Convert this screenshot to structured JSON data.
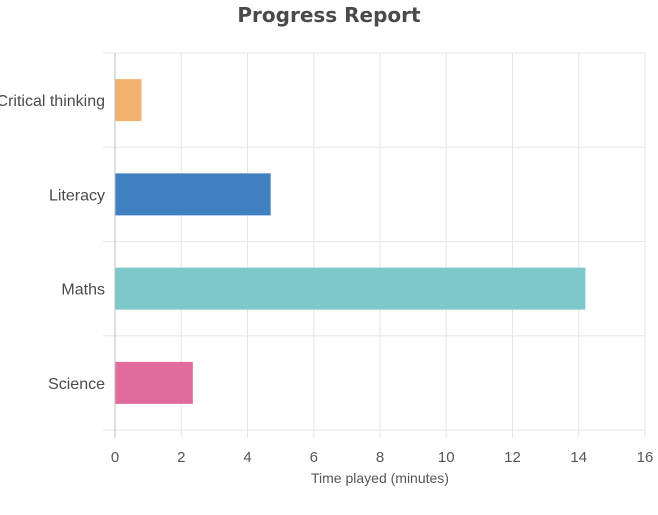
{
  "chart_data": {
    "type": "bar",
    "orientation": "horizontal",
    "title": "Progress Report",
    "xlabel": "Time played (minutes)",
    "ylabel": "",
    "categories": [
      "Critical thinking",
      "Literacy",
      "Maths",
      "Science"
    ],
    "values": [
      0.8,
      4.7,
      14.2,
      2.35
    ],
    "colors": [
      "#f2b26f",
      "#407fc0",
      "#7ec8cb",
      "#e26b9e"
    ],
    "xlim": [
      0,
      16
    ],
    "xticks": [
      "0",
      "2",
      "4",
      "6",
      "8",
      "10",
      "12",
      "14",
      "16"
    ],
    "grid": true,
    "legend": "none"
  }
}
